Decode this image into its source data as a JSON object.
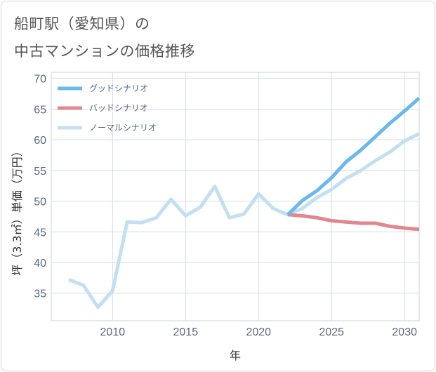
{
  "header": {
    "title_line1": "船町駅（愛知県）の",
    "title_line2": "中古マンションの価格推移"
  },
  "chart_data": {
    "type": "line",
    "xlabel": "年",
    "ylabel": "坪（3.3㎡）単価（万円）",
    "xlim": [
      2005.8,
      2031
    ],
    "ylim": [
      30.5,
      71
    ],
    "x_ticks": [
      2010,
      2015,
      2020,
      2025,
      2030
    ],
    "y_ticks": [
      35,
      40,
      45,
      50,
      55,
      60,
      65,
      70
    ],
    "grid": true,
    "legend_position": "top-left",
    "series": [
      {
        "name": "グッドシナリオ",
        "color": "#6cb8ea",
        "x": [
          2022,
          2023,
          2024,
          2025,
          2026,
          2027,
          2028,
          2029,
          2030,
          2031
        ],
        "y": [
          47.8,
          50.1,
          51.7,
          53.8,
          56.4,
          58.3,
          60.5,
          62.7,
          64.7,
          66.8
        ]
      },
      {
        "name": "バッドシナリオ",
        "color": "#e0878f",
        "x": [
          2022,
          2023,
          2024,
          2025,
          2026,
          2027,
          2028,
          2029,
          2030,
          2031
        ],
        "y": [
          47.8,
          47.6,
          47.3,
          46.8,
          46.6,
          46.4,
          46.4,
          45.9,
          45.6,
          45.4
        ]
      },
      {
        "name": "ノーマルシナリオ",
        "color": "#c3dff0",
        "x": [
          2007,
          2008,
          2009,
          2010,
          2011,
          2012,
          2013,
          2014,
          2015,
          2016,
          2017,
          2018,
          2019,
          2020,
          2021,
          2022,
          2023,
          2024,
          2025,
          2026,
          2027,
          2028,
          2029,
          2030,
          2031
        ],
        "y": [
          37.2,
          36.3,
          32.7,
          35.4,
          46.6,
          46.5,
          47.3,
          50.3,
          47.6,
          49.0,
          52.4,
          47.3,
          47.9,
          51.2,
          48.8,
          47.8,
          48.8,
          50.6,
          51.9,
          53.7,
          55.0,
          56.6,
          58.0,
          59.8,
          61.0
        ]
      }
    ]
  }
}
